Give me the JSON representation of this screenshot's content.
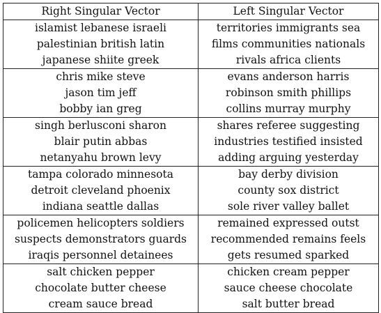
{
  "headers": [
    "Right Singular Vector",
    "Left Singular Vector"
  ],
  "groups": [
    {
      "right": [
        "islamist lebanese israeli",
        "palestinian british latin",
        "japanese shiite greek"
      ],
      "left": [
        "territories immigrants sea",
        "films communities nationals",
        "rivals africa clients"
      ]
    },
    {
      "right": [
        "chris mike steve",
        "jason tim jeff",
        "bobby ian greg"
      ],
      "left": [
        "evans anderson harris",
        "robinson smith phillips",
        "collins murray murphy"
      ]
    },
    {
      "right": [
        "singh berlusconi sharon",
        "blair putin abbas",
        "netanyahu brown levy"
      ],
      "left": [
        "shares referee suggesting",
        "industries testified insisted",
        "adding arguing yesterday"
      ]
    },
    {
      "right": [
        "tampa colorado minnesota",
        "detroit cleveland phoenix",
        "indiana seattle dallas"
      ],
      "left": [
        "bay derby division",
        "county sox district",
        "sole river valley ballet"
      ]
    },
    {
      "right": [
        "policemen helicopters soldiers",
        "suspects demonstrators guards",
        "iraqis personnel detainees"
      ],
      "left": [
        "remained expressed outst",
        "recommended remains feels",
        "gets resumed sparked"
      ]
    },
    {
      "right": [
        "salt chicken pepper",
        "chocolate butter cheese",
        "cream sauce bread"
      ],
      "left": [
        "chicken cream pepper",
        "sauce cheese chocolate",
        "salt butter bread"
      ]
    }
  ]
}
